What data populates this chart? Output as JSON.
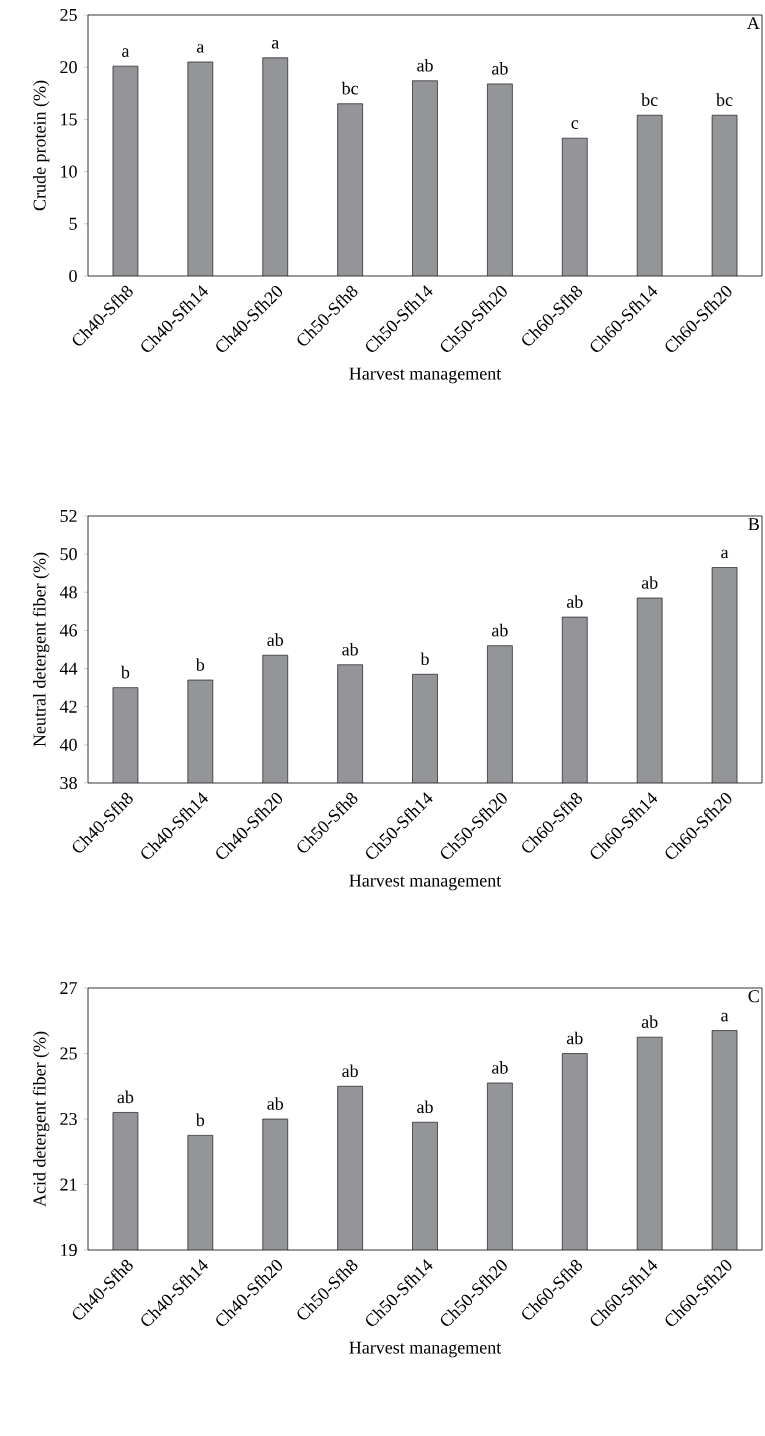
{
  "chart_data": [
    {
      "type": "bar",
      "categories": [
        "Ch40-Sfh8",
        "Ch40-Sfh14",
        "Ch40-Sfh20",
        "Ch50-Sfh8",
        "Ch50-Sfh14",
        "Ch50-Sfh20",
        "Ch60-Sfh8",
        "Ch60-Sfh14",
        "Ch60-Sfh20"
      ],
      "values": [
        20.1,
        20.5,
        20.9,
        16.5,
        18.7,
        18.4,
        13.2,
        15.4,
        15.4
      ],
      "color": "#939598",
      "ylim": [
        0,
        25
      ],
      "yticks": [
        0,
        5,
        10,
        15,
        20,
        25
      ],
      "xlabel": "Harvest management",
      "ylabel": "Crude protein (%)",
      "annotations": [
        "A",
        {
          "text": "a",
          "x": "Ch40-Sfh8",
          "y": 20.1
        },
        {
          "text": "a",
          "x": "Ch40-Sfh14",
          "y": 20.5
        },
        {
          "text": "a",
          "x": "Ch40-Sfh20",
          "y": 20.9
        },
        {
          "text": "bc",
          "x": "Ch50-Sfh8",
          "y": 16.5
        },
        {
          "text": "ab",
          "x": "Ch50-Sfh14",
          "y": 18.7
        },
        {
          "text": "ab",
          "x": "Ch50-Sfh20",
          "y": 18.4
        },
        {
          "text": "c",
          "x": "Ch60-Sfh8",
          "y": 13.2
        },
        {
          "text": "bc",
          "x": "Ch60-Sfh14",
          "y": 15.4
        },
        {
          "text": "bc",
          "x": "Ch60-Sfh20",
          "y": 15.4
        }
      ]
    },
    {
      "type": "bar",
      "categories": [
        "Ch40-Sfh8",
        "Ch40-Sfh14",
        "Ch40-Sfh20",
        "Ch50-Sfh8",
        "Ch50-Sfh14",
        "Ch50-Sfh20",
        "Ch60-Sfh8",
        "Ch60-Sfh14",
        "Ch60-Sfh20"
      ],
      "values": [
        43.0,
        43.4,
        44.7,
        44.2,
        43.7,
        45.2,
        46.7,
        47.7,
        49.3
      ],
      "color": "#939598",
      "ylim": [
        38,
        52
      ],
      "yticks": [
        38,
        40,
        42,
        44,
        46,
        48,
        50,
        52
      ],
      "xlabel": "Harvest management",
      "ylabel": "Neutral detergent fiber (%)",
      "annotations": [
        "B",
        {
          "text": "b",
          "x": "Ch40-Sfh8",
          "y": 43.0
        },
        {
          "text": "b",
          "x": "Ch40-Sfh14",
          "y": 43.4
        },
        {
          "text": "ab",
          "x": "Ch40-Sfh20",
          "y": 44.7
        },
        {
          "text": "ab",
          "x": "Ch50-Sfh8",
          "y": 44.2
        },
        {
          "text": "b",
          "x": "Ch50-Sfh14",
          "y": 43.7
        },
        {
          "text": "ab",
          "x": "Ch50-Sfh20",
          "y": 45.2
        },
        {
          "text": "ab",
          "x": "Ch60-Sfh8",
          "y": 46.7
        },
        {
          "text": "ab",
          "x": "Ch60-Sfh14",
          "y": 47.7
        },
        {
          "text": "a",
          "x": "Ch60-Sfh20",
          "y": 49.3
        }
      ]
    },
    {
      "type": "bar",
      "categories": [
        "Ch40-Sfh8",
        "Ch40-Sfh14",
        "Ch40-Sfh20",
        "Ch50-Sfh8",
        "Ch50-Sfh14",
        "Ch50-Sfh20",
        "Ch60-Sfh8",
        "Ch60-Sfh14",
        "Ch60-Sfh20"
      ],
      "values": [
        23.2,
        22.5,
        23.0,
        24.0,
        22.9,
        24.1,
        25.0,
        25.5,
        25.7
      ],
      "color": "#939598",
      "ylim": [
        19,
        27
      ],
      "yticks": [
        19,
        21,
        23,
        25,
        27
      ],
      "xlabel": "Harvest management",
      "ylabel": "Acid detergent fiber (%)",
      "annotations": [
        "C",
        {
          "text": "ab",
          "x": "Ch40-Sfh8",
          "y": 23.2
        },
        {
          "text": "b",
          "x": "Ch40-Sfh14",
          "y": 22.5
        },
        {
          "text": "ab",
          "x": "Ch40-Sfh20",
          "y": 23.0
        },
        {
          "text": "ab",
          "x": "Ch50-Sfh8",
          "y": 24.0
        },
        {
          "text": "ab",
          "x": "Ch50-Sfh14",
          "y": 22.9
        },
        {
          "text": "ab",
          "x": "Ch50-Sfh20",
          "y": 24.1
        },
        {
          "text": "ab",
          "x": "Ch60-Sfh8",
          "y": 25.0
        },
        {
          "text": "ab",
          "x": "Ch60-Sfh14",
          "y": 25.5
        },
        {
          "text": "a",
          "x": "Ch60-Sfh20",
          "y": 25.7
        }
      ]
    }
  ]
}
